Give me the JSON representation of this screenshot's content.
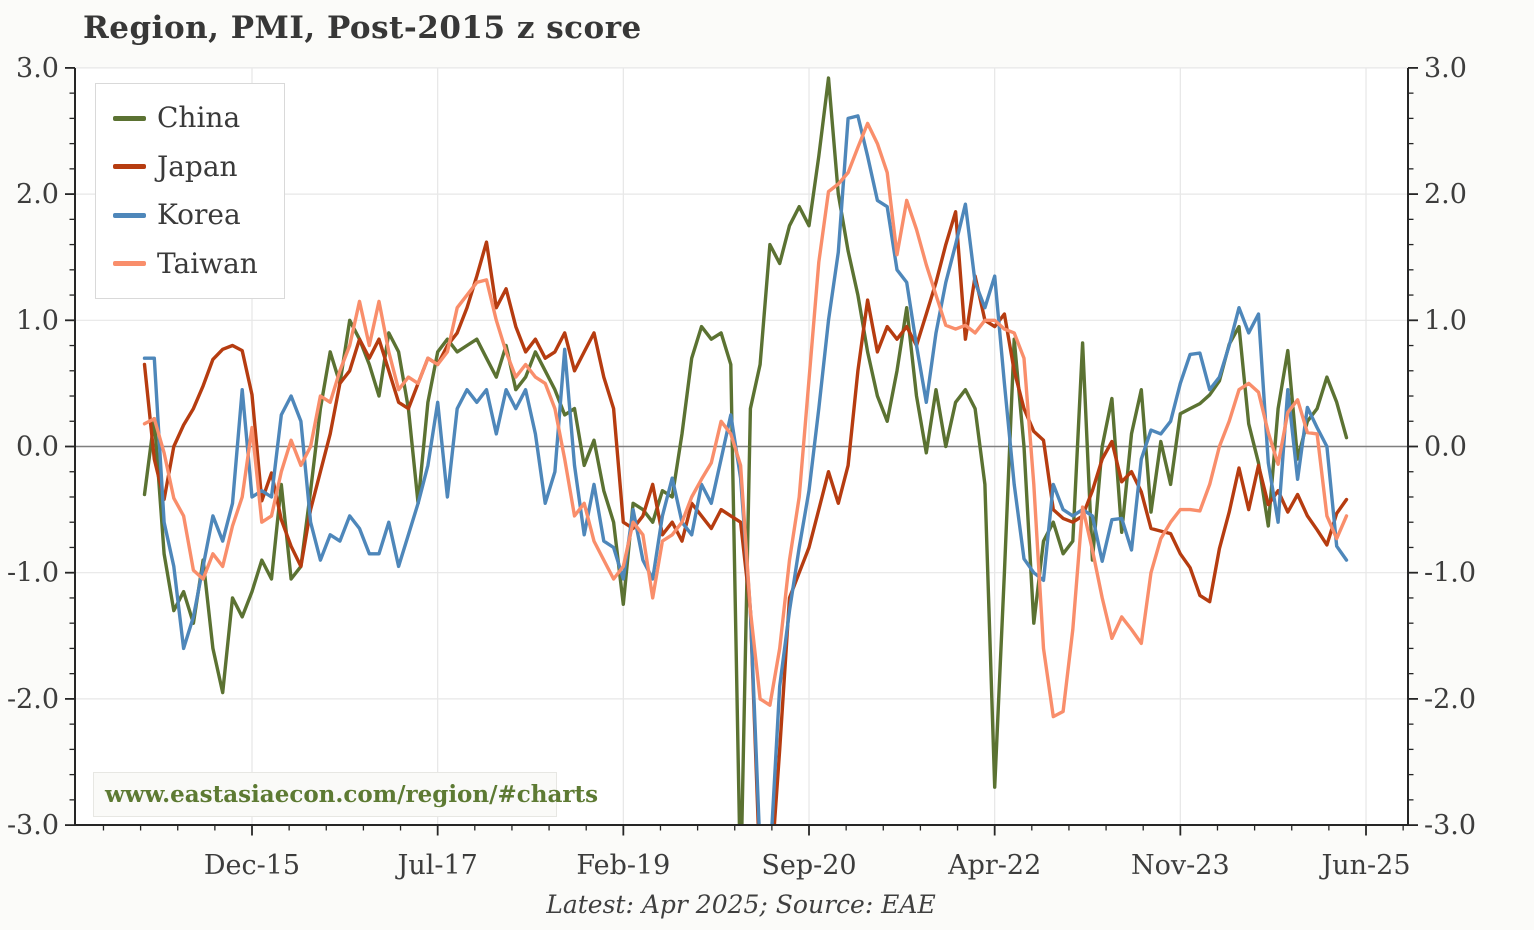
{
  "page": {
    "title": "Region, PMI, Post-2015 z score",
    "watermark": "www.eastasiaecon.com/region/#charts",
    "footer": "Latest: Apr 2025; Source: EAE"
  },
  "colors": {
    "china": "#5b7232",
    "japan": "#b63c10",
    "korea": "#4e87ba",
    "taiwan": "#f98e6b",
    "grid": "#e7e7e7",
    "zero_line": "#7f7f7f",
    "spine": "#262626",
    "tick_text": "#3d3d3d",
    "title_text": "#373737",
    "watermark_text": "#5d7a33",
    "background": "#fbfbf9",
    "plot_background": "#ffffff"
  },
  "chart_data": {
    "type": "line",
    "title": "Region, PMI, Post-2015 z score",
    "xlabel": "",
    "ylabel": "",
    "x_start_month": "2015-01",
    "x_end_month": "2025-04",
    "x_frequency": "monthly",
    "ylim": [
      -3.0,
      3.0
    ],
    "grid": true,
    "zero_line": true,
    "legend_position": "upper-left",
    "y_ticks": [
      3,
      2,
      1,
      0,
      -1,
      -2,
      -3
    ],
    "y_tick_labels": [
      "3.0",
      "2.0",
      "1.0",
      "0.0",
      "-1.0",
      "-2.0",
      "-3.0"
    ],
    "x_tick_labels": [
      "Dec-15",
      "Jul-17",
      "Feb-19",
      "Sep-20",
      "Apr-22",
      "Nov-23",
      "Jun-25"
    ],
    "x_tick_month_index": [
      11,
      30,
      49,
      68,
      87,
      106,
      125
    ],
    "series": [
      {
        "name": "China",
        "color_key": "china",
        "values": [
          -0.38,
          0.22,
          -0.85,
          -1.3,
          -1.15,
          -1.4,
          -0.9,
          -1.6,
          -1.95,
          -1.2,
          -1.35,
          -1.15,
          -0.9,
          -1.05,
          -0.3,
          -1.05,
          -0.95,
          -0.35,
          0.3,
          0.75,
          0.5,
          1.0,
          0.85,
          0.65,
          0.4,
          0.9,
          0.75,
          0.3,
          -0.45,
          0.35,
          0.75,
          0.85,
          0.75,
          0.8,
          0.85,
          0.7,
          0.55,
          0.8,
          0.45,
          0.55,
          0.75,
          0.6,
          0.45,
          0.25,
          0.3,
          -0.15,
          0.05,
          -0.35,
          -0.6,
          -1.25,
          -0.45,
          -0.5,
          -0.6,
          -0.35,
          -0.4,
          0.1,
          0.7,
          0.95,
          0.85,
          0.9,
          0.65,
          -3.5,
          0.3,
          0.65,
          1.6,
          1.45,
          1.75,
          1.9,
          1.75,
          2.3,
          2.92,
          2.0,
          1.55,
          1.2,
          0.75,
          0.4,
          0.2,
          0.6,
          1.1,
          0.4,
          -0.05,
          0.45,
          0.0,
          0.35,
          0.45,
          0.3,
          -0.3,
          -2.7,
          -1.0,
          0.85,
          0.0,
          -1.4,
          -0.75,
          -0.6,
          -0.85,
          -0.75,
          0.82,
          -0.9,
          0.0,
          0.38,
          -0.68,
          0.1,
          0.45,
          -0.52,
          0.04,
          -0.3,
          0.26,
          0.3,
          0.34,
          0.41,
          0.52,
          0.81,
          0.95,
          0.18,
          -0.13,
          -0.63,
          0.3,
          0.76,
          -0.1,
          0.2,
          0.3,
          0.55,
          0.35,
          0.07
        ]
      },
      {
        "name": "Japan",
        "color_key": "japan",
        "values": [
          0.65,
          -0.1,
          -0.42,
          0.0,
          0.17,
          0.3,
          0.48,
          0.69,
          0.77,
          0.8,
          0.76,
          0.41,
          -0.43,
          -0.21,
          -0.58,
          -0.79,
          -0.95,
          -0.5,
          -0.2,
          0.1,
          0.5,
          0.6,
          0.85,
          0.7,
          0.85,
          0.6,
          0.35,
          0.3,
          0.5,
          0.7,
          0.65,
          0.8,
          0.9,
          1.1,
          1.35,
          1.62,
          1.1,
          1.25,
          0.95,
          0.75,
          0.85,
          0.7,
          0.75,
          0.9,
          0.6,
          0.75,
          0.9,
          0.55,
          0.3,
          -0.6,
          -0.65,
          -0.55,
          -0.3,
          -0.7,
          -0.6,
          -0.75,
          -0.45,
          -0.55,
          -0.65,
          -0.5,
          -0.55,
          -0.6,
          -1.3,
          -3.4,
          -3.5,
          -2.4,
          -1.2,
          -1.0,
          -0.8,
          -0.5,
          -0.2,
          -0.45,
          -0.15,
          0.6,
          1.16,
          0.75,
          0.95,
          0.85,
          0.95,
          0.8,
          1.05,
          1.3,
          1.6,
          1.86,
          0.85,
          1.35,
          1.0,
          0.95,
          1.05,
          0.6,
          0.3,
          0.12,
          0.05,
          -0.5,
          -0.57,
          -0.6,
          -0.55,
          -0.35,
          -0.1,
          0.04,
          -0.28,
          -0.2,
          -0.36,
          -0.65,
          -0.67,
          -0.69,
          -0.85,
          -0.96,
          -1.18,
          -1.23,
          -0.81,
          -0.52,
          -0.17,
          -0.5,
          -0.15,
          -0.46,
          -0.35,
          -0.52,
          -0.38,
          -0.55,
          -0.66,
          -0.78,
          -0.53,
          -0.42
        ]
      },
      {
        "name": "Korea",
        "color_key": "korea",
        "values": [
          0.7,
          0.7,
          -0.6,
          -0.95,
          -1.6,
          -1.35,
          -0.95,
          -0.55,
          -0.75,
          -0.45,
          0.45,
          -0.4,
          -0.35,
          -0.4,
          0.25,
          0.4,
          0.2,
          -0.6,
          -0.9,
          -0.7,
          -0.75,
          -0.55,
          -0.65,
          -0.85,
          -0.85,
          -0.6,
          -0.95,
          -0.7,
          -0.45,
          -0.15,
          0.35,
          -0.4,
          0.3,
          0.45,
          0.35,
          0.45,
          0.1,
          0.45,
          0.3,
          0.45,
          0.1,
          -0.45,
          -0.2,
          0.77,
          -0.15,
          -0.7,
          -0.3,
          -0.75,
          -0.8,
          -1.05,
          -0.5,
          -0.9,
          -1.05,
          -0.55,
          -0.25,
          -0.6,
          -0.7,
          -0.3,
          -0.45,
          -0.1,
          0.25,
          -0.25,
          -1.3,
          -3.2,
          -3.3,
          -1.9,
          -1.3,
          -0.8,
          -0.35,
          0.3,
          1.0,
          1.54,
          2.6,
          2.62,
          2.3,
          1.95,
          1.9,
          1.4,
          1.3,
          0.8,
          0.35,
          0.9,
          1.3,
          1.6,
          1.92,
          1.3,
          1.1,
          1.35,
          0.5,
          -0.3,
          -0.89,
          -1.0,
          -1.06,
          -0.3,
          -0.5,
          -0.55,
          -0.5,
          -0.55,
          -0.91,
          -0.58,
          -0.57,
          -0.82,
          -0.1,
          0.13,
          0.1,
          0.2,
          0.5,
          0.73,
          0.74,
          0.45,
          0.55,
          0.8,
          1.1,
          0.9,
          1.05,
          -0.13,
          -0.6,
          0.45,
          -0.26,
          0.31,
          0.15,
          0.0,
          -0.79,
          -0.9
        ]
      },
      {
        "name": "Taiwan",
        "color_key": "taiwan",
        "values": [
          0.18,
          0.22,
          -0.05,
          -0.41,
          -0.55,
          -0.98,
          -1.05,
          -0.85,
          -0.95,
          -0.63,
          -0.4,
          0.15,
          -0.6,
          -0.55,
          -0.2,
          0.05,
          -0.15,
          0.0,
          0.4,
          0.35,
          0.6,
          0.8,
          1.15,
          0.8,
          1.15,
          0.75,
          0.45,
          0.55,
          0.5,
          0.7,
          0.65,
          0.75,
          1.1,
          1.2,
          1.3,
          1.32,
          1.0,
          0.75,
          0.55,
          0.65,
          0.55,
          0.5,
          0.3,
          -0.1,
          -0.55,
          -0.45,
          -0.75,
          -0.9,
          -1.05,
          -0.95,
          -0.6,
          -0.7,
          -1.2,
          -0.75,
          -0.7,
          -0.6,
          -0.4,
          -0.26,
          -0.13,
          0.2,
          0.1,
          -0.15,
          -1.3,
          -2.0,
          -2.05,
          -1.6,
          -0.9,
          -0.4,
          0.53,
          1.46,
          2.02,
          2.08,
          2.17,
          2.37,
          2.56,
          2.4,
          2.17,
          1.52,
          1.95,
          1.72,
          1.44,
          1.2,
          0.96,
          0.93,
          0.96,
          0.9,
          1.0,
          1.0,
          0.93,
          0.9,
          0.7,
          -0.3,
          -1.6,
          -2.14,
          -2.1,
          -1.45,
          -0.48,
          -0.82,
          -1.2,
          -1.52,
          -1.35,
          -1.45,
          -1.56,
          -1.0,
          -0.73,
          -0.6,
          -0.5,
          -0.5,
          -0.51,
          -0.3,
          0.0,
          0.2,
          0.45,
          0.5,
          0.43,
          0.11,
          -0.14,
          0.27,
          0.37,
          0.11,
          0.1,
          -0.55,
          -0.73,
          -0.55
        ]
      }
    ]
  }
}
